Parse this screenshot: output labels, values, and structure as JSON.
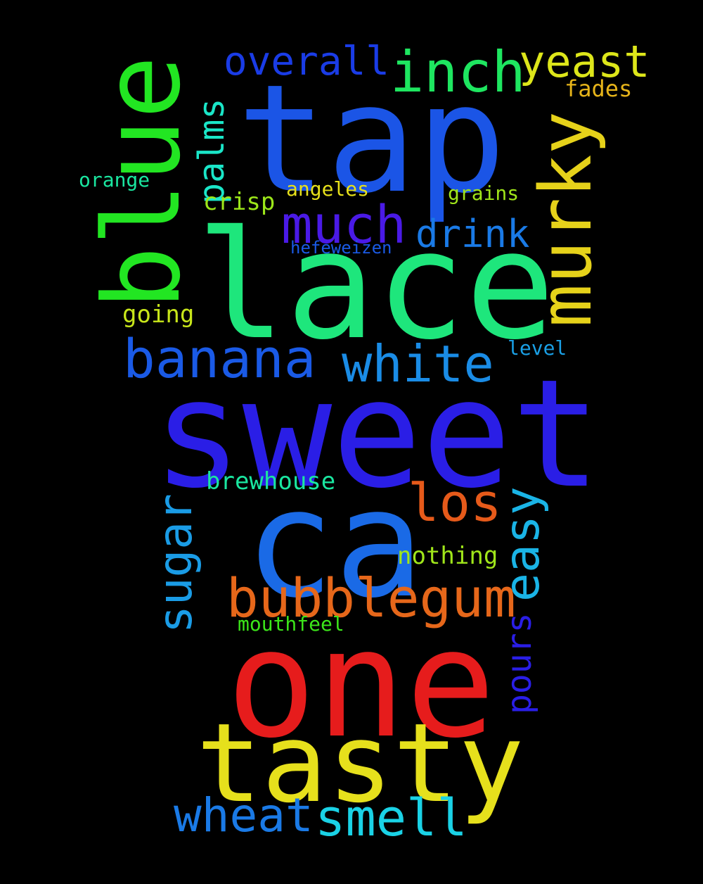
{
  "words": [
    {
      "text": "sweet",
      "color": "#2a1ee6"
    },
    {
      "text": "lace",
      "color": "#1ee67c"
    },
    {
      "text": "tap",
      "color": "#1b55e6"
    },
    {
      "text": "ca",
      "color": "#1a6ae6"
    },
    {
      "text": "one",
      "color": "#e61c1c"
    },
    {
      "text": "tasty",
      "color": "#e6e01c"
    },
    {
      "text": "blue",
      "color": "#22e622"
    },
    {
      "text": "murky",
      "color": "#e6d21a"
    },
    {
      "text": "banana",
      "color": "#1a5ae6"
    },
    {
      "text": "white",
      "color": "#1a8ce6"
    },
    {
      "text": "bubblegum",
      "color": "#e6671a"
    },
    {
      "text": "much",
      "color": "#4a1ae6"
    },
    {
      "text": "inch",
      "color": "#1ee660"
    },
    {
      "text": "yeast",
      "color": "#dde61a"
    },
    {
      "text": "overall",
      "color": "#1a3ce6"
    },
    {
      "text": "palms",
      "color": "#1ae6c8"
    },
    {
      "text": "drink",
      "color": "#1a7ae6"
    },
    {
      "text": "los",
      "color": "#e65a1a"
    },
    {
      "text": "easy",
      "color": "#1ab4e6"
    },
    {
      "text": "sugar",
      "color": "#1a9ce6"
    },
    {
      "text": "smell",
      "color": "#1ad2e6"
    },
    {
      "text": "wheat",
      "color": "#1a7ae6"
    },
    {
      "text": "pours",
      "color": "#2a1ee6"
    },
    {
      "text": "brewhouse",
      "color": "#1ae6a0"
    },
    {
      "text": "nothing",
      "color": "#a0e61a"
    },
    {
      "text": "crisp",
      "color": "#9ce61a"
    },
    {
      "text": "going",
      "color": "#c8e61a"
    },
    {
      "text": "angeles",
      "color": "#e6e01a"
    },
    {
      "text": "grains",
      "color": "#a0e61a"
    },
    {
      "text": "fades",
      "color": "#e6b41a"
    },
    {
      "text": "orange",
      "color": "#1ae6a0"
    },
    {
      "text": "hefeweizen",
      "color": "#1a5ae6"
    },
    {
      "text": "level",
      "color": "#1aa0e6"
    },
    {
      "text": "mouthfeel",
      "color": "#3ce61a"
    }
  ]
}
